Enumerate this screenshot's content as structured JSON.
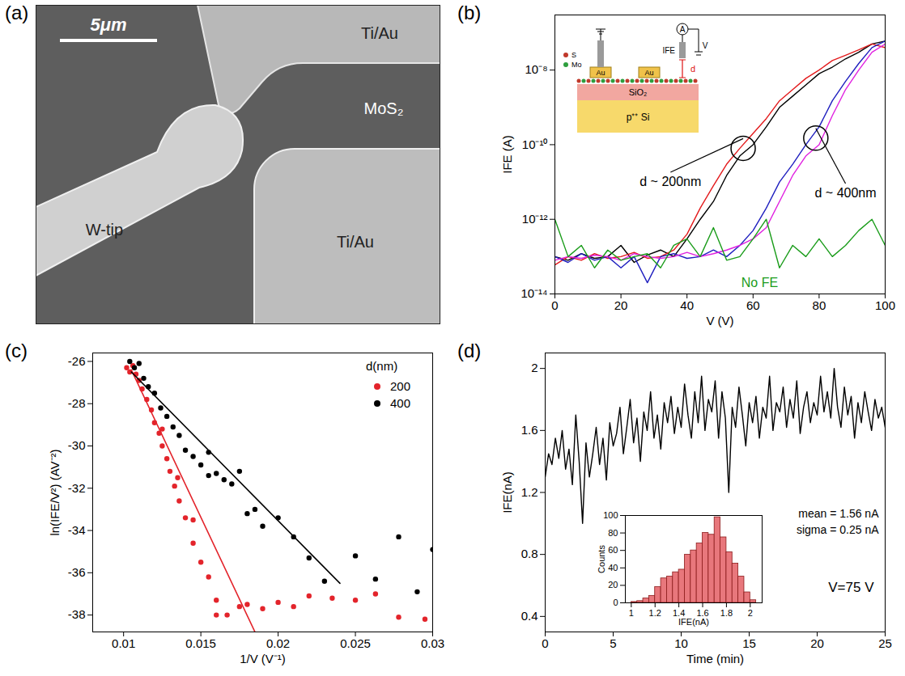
{
  "chart_data": [
    {
      "type": "image",
      "panel": "(a)",
      "scale_bar": "5μm",
      "labels": [
        "Ti/Au",
        "MoS₂",
        "W-tip",
        "Ti/Au"
      ]
    },
    {
      "type": "line",
      "panel": "(b)",
      "xlabel": "V (V)",
      "ylabel": "IFE (A)",
      "log": "y",
      "xlim": [
        0,
        100
      ],
      "xticks": [
        0,
        20,
        40,
        60,
        80,
        100
      ],
      "ylim": [
        1e-14,
        3e-07
      ],
      "yticks": [
        {
          "value": 1e-14,
          "label": "10⁻¹⁴"
        },
        {
          "value": 1e-12,
          "label": "10⁻¹²"
        },
        {
          "value": 1e-10,
          "label": "10⁻¹⁰"
        },
        {
          "value": 1e-08,
          "label": "10⁻⁸"
        }
      ],
      "x": [
        0,
        4,
        8,
        12,
        16,
        20,
        24,
        28,
        32,
        36,
        40,
        44,
        48,
        52,
        56,
        60,
        64,
        68,
        72,
        76,
        80,
        84,
        88,
        92,
        96,
        100
      ],
      "series": [
        {
          "color": "#000000",
          "values": [
            1e-13,
            8e-14,
            1.2e-13,
            9e-14,
            1e-13,
            2e-13,
            7e-14,
            1.1e-13,
            1.5e-13,
            1e-13,
            3e-13,
            1e-12,
            3e-12,
            1.5e-11,
            5e-11,
            1e-10,
            3e-10,
            1e-09,
            2e-09,
            4e-09,
            8e-09,
            1.2e-08,
            2e-08,
            3e-08,
            5e-08,
            6e-08
          ]
        },
        {
          "color": "#e31a1c",
          "values": [
            6e-14,
            1e-13,
            8e-14,
            1.2e-13,
            9e-14,
            1e-13,
            1.3e-13,
            9e-14,
            1e-13,
            1.5e-13,
            4e-13,
            2e-12,
            8e-12,
            3e-11,
            8e-11,
            2e-10,
            5e-10,
            1.5e-09,
            3e-09,
            6e-09,
            1e-08,
            1.8e-08,
            2.5e-08,
            3.5e-08,
            5e-08,
            4e-08
          ]
        },
        {
          "color": "#1f1fbf",
          "values": [
            1e-13,
            7e-14,
            1.2e-13,
            8e-14,
            1e-13,
            5e-14,
            1e-13,
            2e-14,
            1e-13,
            1.2e-13,
            9e-14,
            1e-13,
            1.5e-13,
            1e-13,
            2e-13,
            5e-13,
            2e-12,
            1e-11,
            3e-11,
            1e-10,
            3e-10,
            1.5e-09,
            5e-09,
            1.5e-08,
            4e-08,
            6e-08
          ]
        },
        {
          "color": "#e020e0",
          "values": [
            8e-14,
            1e-13,
            9e-14,
            1.1e-13,
            1e-13,
            8e-14,
            1.2e-13,
            1e-13,
            9e-14,
            1e-13,
            1.3e-13,
            1e-13,
            1.2e-13,
            1.5e-13,
            2e-13,
            3e-13,
            6e-13,
            3e-12,
            1.5e-11,
            5e-11,
            1e-10,
            6e-10,
            3e-09,
            1e-08,
            3e-08,
            5e-08
          ]
        },
        {
          "name": "No FE",
          "color": "#1a9c1a",
          "values": [
            1e-12,
            1e-13,
            2e-13,
            5e-14,
            1.5e-13,
            8e-14,
            1e-13,
            1.2e-13,
            5e-14,
            2e-13,
            3e-13,
            1e-13,
            6e-13,
            8e-14,
            1e-13,
            3e-13,
            1e-12,
            5e-14,
            2e-13,
            1e-13,
            3e-13,
            1e-13,
            2e-13,
            5e-13,
            1e-12,
            2e-13
          ]
        }
      ],
      "annotations": [
        {
          "text": "d ~ 200nm",
          "x": 35,
          "y": 1e-11,
          "circle": [
            57,
            8e-11
          ]
        },
        {
          "text": "d ~ 400nm",
          "x": 88,
          "y": 5e-12,
          "circle": [
            79,
            1.5e-10
          ]
        },
        {
          "text": "No FE",
          "x": 62,
          "y": 2e-14,
          "color": "#1a9c1a"
        }
      ],
      "schematic": {
        "atoms": [
          "S",
          "Mo"
        ],
        "pads": [
          "Au",
          "Au"
        ],
        "oxide": "SiO₂",
        "substrate": "p⁺⁺ Si",
        "meter": "A",
        "current": "IFE",
        "voltage": "V",
        "gap": "d"
      }
    },
    {
      "type": "scatter",
      "panel": "(c)",
      "xlabel": "1/V (V⁻¹)",
      "ylabel": "ln(IFE/V²) (AV⁻²)",
      "xlim": [
        0.008,
        0.03
      ],
      "xticks": [
        0.01,
        0.015,
        0.02,
        0.025,
        0.03
      ],
      "ylim": [
        -38.8,
        -25.6
      ],
      "yticks": [
        -38,
        -36,
        -34,
        -32,
        -30,
        -28,
        -26
      ],
      "legend": "top-right",
      "legend_title": "d(nm)",
      "series": [
        {
          "name": "200",
          "color": "#e3242b",
          "type": "scatter",
          "x": [
            0.0102,
            0.0104,
            0.0106,
            0.0108,
            0.011,
            0.0112,
            0.0115,
            0.0118,
            0.012,
            0.0123,
            0.0125,
            0.0125,
            0.0128,
            0.013,
            0.0133,
            0.0135,
            0.0136,
            0.014,
            0.0145,
            0.0145,
            0.015,
            0.0155,
            0.016,
            0.016,
            0.0167,
            0.0175,
            0.018,
            0.019,
            0.02,
            0.021,
            0.022,
            0.0235,
            0.025,
            0.0263,
            0.0278,
            0.0295
          ],
          "values": [
            -26.3,
            -26.5,
            -26.2,
            -26.6,
            -26.9,
            -27.3,
            -27.8,
            -28.3,
            -28.9,
            -29.4,
            -30,
            -29.2,
            -30.6,
            -31.2,
            -31.9,
            -31.5,
            -32.6,
            -33.4,
            -34.6,
            -33.5,
            -35.5,
            -36.2,
            -37.3,
            -38,
            -38,
            -37.6,
            -37.5,
            -37.7,
            -37.4,
            -37.6,
            -37.1,
            -37.2,
            -37.3,
            -37,
            -38.1,
            -38.2
          ]
        },
        {
          "name": "400",
          "color": "#000000",
          "type": "scatter",
          "x": [
            0.0104,
            0.0107,
            0.011,
            0.0113,
            0.0116,
            0.012,
            0.0124,
            0.0128,
            0.0132,
            0.0136,
            0.014,
            0.0145,
            0.015,
            0.0155,
            0.0155,
            0.016,
            0.0165,
            0.017,
            0.0175,
            0.018,
            0.0185,
            0.019,
            0.02,
            0.021,
            0.022,
            0.023,
            0.025,
            0.0263,
            0.0278,
            0.029,
            0.03
          ],
          "values": [
            -26,
            -26.3,
            -26.1,
            -26.8,
            -27.2,
            -27.5,
            -28.2,
            -28.6,
            -29.1,
            -29.5,
            -30.2,
            -30.5,
            -30.9,
            -31.4,
            -30.3,
            -31.3,
            -31.6,
            -31.8,
            -31.2,
            -33.2,
            -33,
            -33.8,
            -33.4,
            -34.3,
            -35.3,
            -36.4,
            -35.2,
            -36.3,
            -34.3,
            -36.9,
            -34.9
          ]
        },
        {
          "color": "#e3242b",
          "type": "line",
          "x": [
            0.0105,
            0.0185
          ],
          "values": [
            -26.4,
            -38.8
          ]
        },
        {
          "color": "#000000",
          "type": "line",
          "x": [
            0.0105,
            0.024
          ],
          "values": [
            -26.5,
            -36.5
          ]
        }
      ]
    },
    {
      "type": "line",
      "panel": "(d)",
      "xlabel": "Time (min)",
      "ylabel": "IFE(nA)",
      "xlim": [
        0,
        25
      ],
      "xticks": [
        0,
        5,
        10,
        15,
        20,
        25
      ],
      "ylim": [
        0.3,
        2.1
      ],
      "yticks": [
        0.4,
        0.8,
        1.2,
        1.6,
        2
      ],
      "x": [
        0,
        0.25,
        0.5,
        0.75,
        1,
        1.25,
        1.5,
        1.75,
        2,
        2.25,
        2.5,
        2.75,
        3,
        3.25,
        3.5,
        3.75,
        4,
        4.25,
        4.5,
        4.75,
        5,
        5.25,
        5.5,
        5.75,
        6,
        6.25,
        6.5,
        6.75,
        7,
        7.25,
        7.5,
        7.75,
        8,
        8.25,
        8.5,
        8.75,
        9,
        9.25,
        9.5,
        9.75,
        10,
        10.25,
        10.5,
        10.75,
        11,
        11.25,
        11.5,
        11.75,
        12,
        12.25,
        12.5,
        12.75,
        13,
        13.25,
        13.5,
        13.75,
        14,
        14.25,
        14.5,
        14.75,
        15,
        15.25,
        15.5,
        15.75,
        16,
        16.25,
        16.5,
        16.75,
        17,
        17.25,
        17.5,
        17.75,
        18,
        18.25,
        18.5,
        18.75,
        19,
        19.25,
        19.5,
        19.75,
        20,
        20.25,
        20.5,
        20.75,
        21,
        21.25,
        21.5,
        21.75,
        22,
        22.25,
        22.5,
        22.75,
        23,
        23.25,
        23.5,
        23.75,
        24,
        24.25,
        24.5,
        24.75,
        25
      ],
      "series": [
        {
          "color": "#000000",
          "values": [
            1.3,
            1.45,
            1.38,
            1.55,
            1.42,
            1.6,
            1.35,
            1.48,
            1.25,
            1.7,
            1.4,
            1.0,
            1.52,
            1.3,
            1.45,
            1.62,
            1.38,
            1.55,
            1.28,
            1.65,
            1.5,
            1.58,
            1.75,
            1.45,
            1.62,
            1.8,
            1.52,
            1.68,
            1.4,
            1.72,
            1.6,
            1.85,
            1.55,
            1.7,
            1.48,
            1.78,
            1.65,
            1.82,
            1.58,
            1.75,
            1.62,
            1.9,
            1.7,
            1.55,
            1.85,
            1.65,
            1.95,
            1.6,
            1.8,
            1.72,
            1.92,
            1.55,
            1.85,
            1.68,
            1.2,
            1.75,
            1.62,
            1.88,
            1.7,
            1.5,
            1.78,
            1.65,
            1.82,
            1.55,
            1.75,
            1.68,
            1.95,
            1.6,
            1.78,
            1.72,
            1.88,
            1.62,
            1.8,
            1.68,
            1.92,
            1.58,
            1.75,
            1.85,
            1.65,
            1.78,
            1.7,
            1.95,
            1.72,
            1.85,
            1.68,
            2.0,
            1.75,
            1.62,
            1.88,
            1.7,
            1.82,
            1.55,
            1.78,
            1.65,
            1.85,
            1.72,
            1.6,
            1.8,
            1.68,
            1.75,
            1.62
          ]
        }
      ],
      "texts": [
        "V=75 V"
      ],
      "histogram": {
        "xlabel": "IFE(nA)",
        "ylabel": "Counts",
        "mean": "mean = 1.56 nA",
        "sigma": "sigma = 0.25 nA",
        "color": "#e8777c",
        "xlim": [
          0.95,
          2.1
        ],
        "xticks": [
          1,
          1.2,
          1.4,
          1.6,
          1.8,
          2
        ],
        "ylim": [
          0,
          100
        ],
        "yticks": [
          0,
          20,
          40,
          60,
          80,
          100
        ],
        "bins": [
          1,
          1.05,
          1.1,
          1.15,
          1.2,
          1.25,
          1.3,
          1.35,
          1.4,
          1.45,
          1.5,
          1.55,
          1.6,
          1.65,
          1.7,
          1.75,
          1.8,
          1.85,
          1.9,
          1.95,
          2,
          2.05
        ],
        "counts": [
          1,
          2,
          5,
          8,
          18,
          28,
          30,
          35,
          38,
          55,
          60,
          68,
          80,
          78,
          98,
          75,
          58,
          45,
          30,
          12,
          3
        ]
      }
    }
  ]
}
